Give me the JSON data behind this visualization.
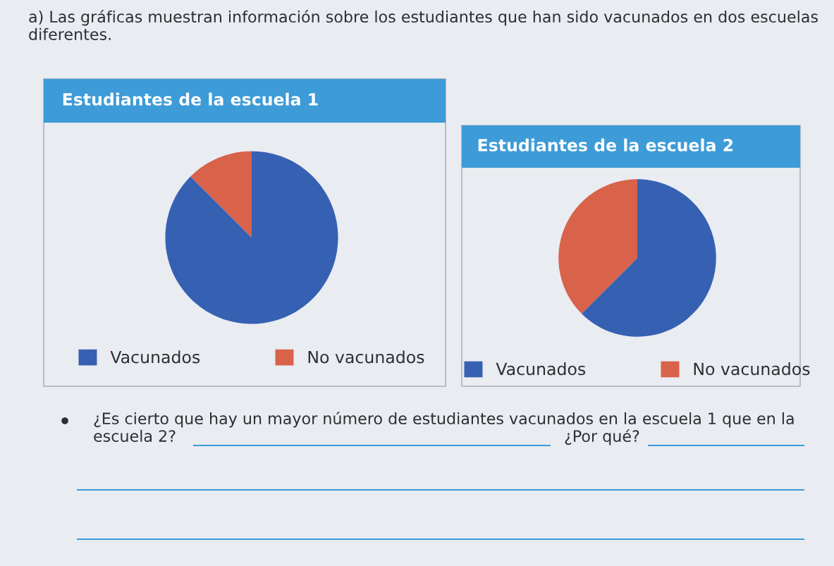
{
  "chart_data": [
    {
      "type": "other",
      "annotations": [
        "a) Las gráficas muestran información sobre los estudiantes que han sido vacunados en dos escuelas diferentes."
      ]
    },
    {
      "type": "pie",
      "title": "Estudiantes de la escuela 1",
      "categories": [
        "Vacunados",
        "No vacunados"
      ],
      "values": [
        87.5,
        12.5
      ],
      "colors": [
        "#3661b2",
        "#d8624a"
      ],
      "legend": "bottom"
    },
    {
      "type": "pie",
      "title": "Estudiantes de la escuela 2",
      "categories": [
        "Vacunados",
        "No vacunados"
      ],
      "values": [
        62.5,
        37.5
      ],
      "colors": [
        "#3661b2",
        "#d8624a"
      ],
      "legend": "bottom"
    },
    {
      "type": "other",
      "annotations": [
        "¿Es cierto que hay un mayor número de estudiantes vacunados en la escuela 1 que en la escuela 2?",
        "¿Por qué?"
      ]
    }
  ]
}
